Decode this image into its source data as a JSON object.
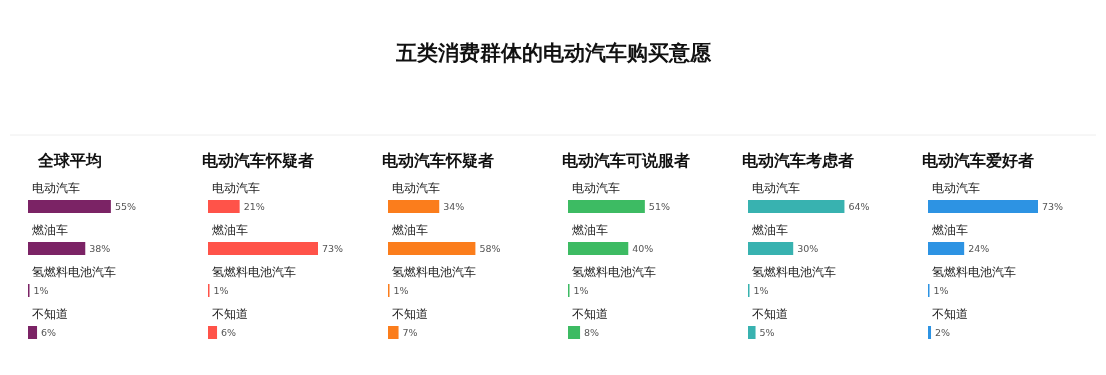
{
  "chart_data": [
    {
      "type": "other",
      "title": "五类消费群体的电动汽车购买意愿"
    },
    {
      "type": "bar",
      "orientation": "horizontal",
      "title": "全球平均",
      "categories": [
        "电动汽车",
        "燃油车",
        "氢燃料电池汽车",
        "不知道"
      ],
      "values": [
        55,
        38,
        1,
        6
      ],
      "value_labels": [
        "55%",
        "38%",
        "1%",
        "6%"
      ],
      "color": "#7b2365"
    },
    {
      "type": "bar",
      "orientation": "horizontal",
      "title": "电动汽车怀疑者",
      "categories": [
        "电动汽车",
        "燃油车",
        "氢燃料电池汽车",
        "不知道"
      ],
      "values": [
        21,
        73,
        1,
        6
      ],
      "value_labels": [
        "21%",
        "73%",
        "1%",
        "6%"
      ],
      "color": "#ff5349"
    },
    {
      "type": "bar",
      "orientation": "horizontal",
      "title": "电动汽车怀疑者",
      "categories": [
        "电动汽车",
        "燃油车",
        "氢燃料电池汽车",
        "不知道"
      ],
      "values": [
        34,
        58,
        1,
        7
      ],
      "value_labels": [
        "34%",
        "58%",
        "1%",
        "7%"
      ],
      "color": "#fb7d1c"
    },
    {
      "type": "bar",
      "orientation": "horizontal",
      "title": "电动汽车可说服者",
      "categories": [
        "电动汽车",
        "燃油车",
        "氢燃料电池汽车",
        "不知道"
      ],
      "values": [
        51,
        40,
        1,
        8
      ],
      "value_labels": [
        "51%",
        "40%",
        "1%",
        "8%"
      ],
      "color": "#3dbb63"
    },
    {
      "type": "bar",
      "orientation": "horizontal",
      "title": "电动汽车考虑者",
      "categories": [
        "电动汽车",
        "燃油车",
        "氢燃料电池汽车",
        "不知道"
      ],
      "values": [
        64,
        30,
        1,
        5
      ],
      "value_labels": [
        "64%",
        "30%",
        "1%",
        "5%"
      ],
      "color": "#38b2b0"
    },
    {
      "type": "bar",
      "orientation": "horizontal",
      "title": "电动汽车爱好者",
      "categories": [
        "电动汽车",
        "燃油车",
        "氢燃料电池汽车",
        "不知道"
      ],
      "values": [
        73,
        24,
        1,
        2
      ],
      "value_labels": [
        "73%",
        "24%",
        "1%",
        "2%"
      ],
      "color": "#2d93e3"
    }
  ]
}
